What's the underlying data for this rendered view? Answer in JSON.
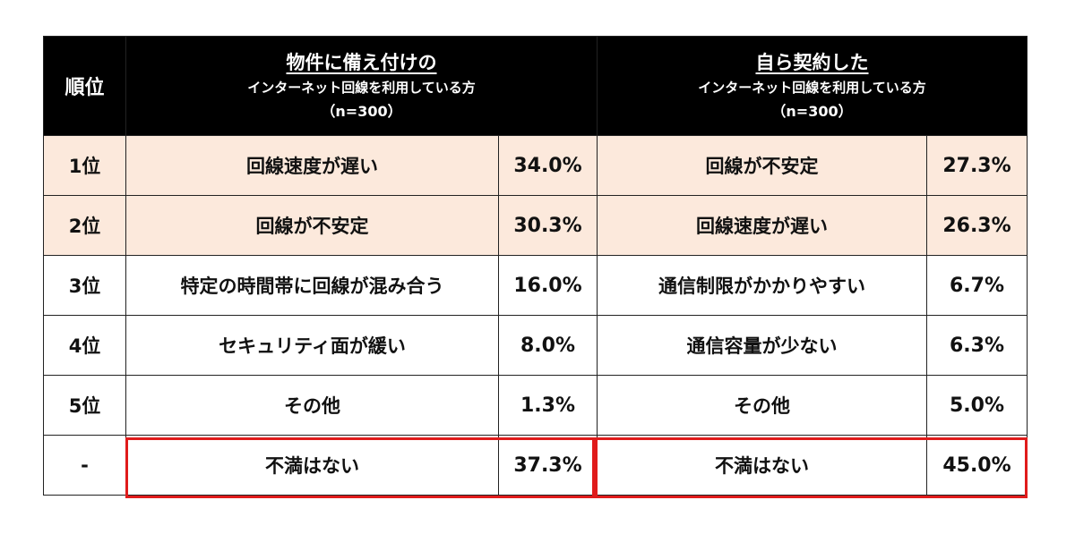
{
  "header": {
    "rank_label": "順位",
    "left": {
      "title": "物件に備え付けの",
      "subtitle": "インターネット回線を利用している方",
      "n": "（n=300）"
    },
    "right": {
      "title": "自ら契約した",
      "subtitle": "インターネット回線を利用している方",
      "n": "（n=300）"
    }
  },
  "rows": [
    {
      "rank": "1位",
      "left_item": "回線速度が遅い",
      "left_pct": "34.0%",
      "right_item": "回線が不安定",
      "right_pct": "27.3%",
      "highlight": true
    },
    {
      "rank": "2位",
      "left_item": "回線が不安定",
      "left_pct": "30.3%",
      "right_item": "回線速度が遅い",
      "right_pct": "26.3%",
      "highlight": true
    },
    {
      "rank": "3位",
      "left_item": "特定の時間帯に回線が混み合う",
      "left_pct": "16.0%",
      "right_item": "通信制限がかかりやすい",
      "right_pct": "6.7%",
      "highlight": false
    },
    {
      "rank": "4位",
      "left_item": "セキュリティ面が緩い",
      "left_pct": "8.0%",
      "right_item": "通信容量が少ない",
      "right_pct": "6.3%",
      "highlight": false
    },
    {
      "rank": "5位",
      "left_item": "その他",
      "left_pct": "1.3%",
      "right_item": "その他",
      "right_pct": "5.0%",
      "highlight": false
    },
    {
      "rank": "-",
      "left_item": "不満はない",
      "left_pct": "37.3%",
      "right_item": "不満はない",
      "right_pct": "45.0%",
      "highlight": false
    }
  ],
  "colors": {
    "header_bg": "#000000",
    "highlight_row_bg": "#fce9dc",
    "callout_border": "#e01b1b"
  }
}
